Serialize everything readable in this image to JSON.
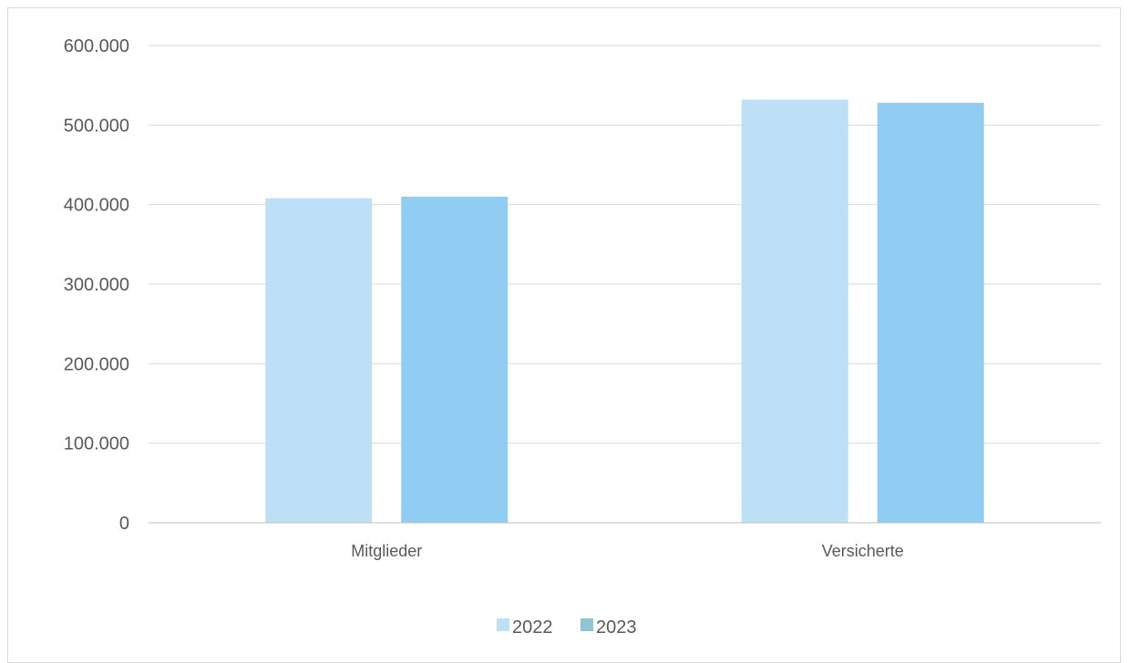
{
  "chart_data": {
    "type": "bar",
    "title": "",
    "xlabel": "",
    "ylabel": "",
    "categories": [
      "Mitglieder",
      "Versicherte"
    ],
    "series": [
      {
        "name": "2022",
        "values": [
          408000,
          532000
        ],
        "color": "#bde0f7"
      },
      {
        "name": "2023",
        "values": [
          410000,
          528000
        ],
        "color": "#91cdf2"
      }
    ],
    "legend_swatch_colors": [
      "#bde0f7",
      "#8fc3d6"
    ],
    "ylim": [
      0,
      600000
    ],
    "yticks": [
      0,
      100000,
      200000,
      300000,
      400000,
      500000,
      600000
    ],
    "ytick_labels": [
      "0",
      "100.000",
      "200.000",
      "300.000",
      "400.000",
      "500.000",
      "600.000"
    ],
    "grid": true,
    "legend_position": "bottom"
  }
}
